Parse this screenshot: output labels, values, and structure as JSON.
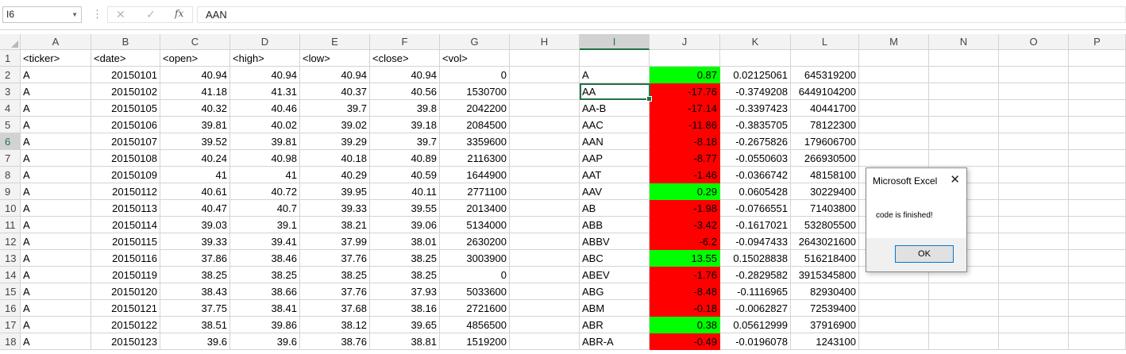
{
  "formula_bar": {
    "name_box": "I6",
    "cancel_glyph": "✕",
    "enter_glyph": "✓",
    "fx_label": "fx",
    "formula": "AAN"
  },
  "columns": [
    "A",
    "B",
    "C",
    "D",
    "E",
    "F",
    "G",
    "H",
    "I",
    "J",
    "K",
    "L",
    "M",
    "N",
    "O",
    "P"
  ],
  "selected_column": "I",
  "selected_row": 6,
  "rows": [
    {
      "n": "1",
      "A": "<ticker>",
      "B": "<date>",
      "C": "<open>",
      "D": "<high>",
      "E": "<low>",
      "F": "<close>",
      "G": "<vol>",
      "I": "",
      "J": "",
      "K": "",
      "L": "",
      "jcolor": ""
    },
    {
      "n": "2",
      "A": "A",
      "B": "20150101",
      "C": "40.94",
      "D": "40.94",
      "E": "40.94",
      "F": "40.94",
      "G": "0",
      "I": "A",
      "J": "0.87",
      "K": "0.02125061",
      "L": "645319200",
      "jcolor": "green"
    },
    {
      "n": "3",
      "A": "A",
      "B": "20150102",
      "C": "41.18",
      "D": "41.31",
      "E": "40.37",
      "F": "40.56",
      "G": "1530700",
      "I": "AA",
      "J": "-17.76",
      "K": "-0.3749208",
      "L": "6449104200",
      "jcolor": "red"
    },
    {
      "n": "4",
      "A": "A",
      "B": "20150105",
      "C": "40.32",
      "D": "40.46",
      "E": "39.7",
      "F": "39.8",
      "G": "2042200",
      "I": "AA-B",
      "J": "-17.14",
      "K": "-0.3397423",
      "L": "40441700",
      "jcolor": "red"
    },
    {
      "n": "5",
      "A": "A",
      "B": "20150106",
      "C": "39.81",
      "D": "40.02",
      "E": "39.02",
      "F": "39.18",
      "G": "2084500",
      "I": "AAC",
      "J": "-11.86",
      "K": "-0.3835705",
      "L": "78122300",
      "jcolor": "red"
    },
    {
      "n": "6",
      "A": "A",
      "B": "20150107",
      "C": "39.52",
      "D": "39.81",
      "E": "39.29",
      "F": "39.7",
      "G": "3359600",
      "I": "AAN",
      "J": "-8.18",
      "K": "-0.2675826",
      "L": "179606700",
      "jcolor": "red"
    },
    {
      "n": "7",
      "A": "A",
      "B": "20150108",
      "C": "40.24",
      "D": "40.98",
      "E": "40.18",
      "F": "40.89",
      "G": "2116300",
      "I": "AAP",
      "J": "-8.77",
      "K": "-0.0550603",
      "L": "266930500",
      "jcolor": "red"
    },
    {
      "n": "8",
      "A": "A",
      "B": "20150109",
      "C": "41",
      "D": "41",
      "E": "40.29",
      "F": "40.59",
      "G": "1644900",
      "I": "AAT",
      "J": "-1.46",
      "K": "-0.0366742",
      "L": "48158100",
      "jcolor": "red"
    },
    {
      "n": "9",
      "A": "A",
      "B": "20150112",
      "C": "40.61",
      "D": "40.72",
      "E": "39.95",
      "F": "40.11",
      "G": "2771100",
      "I": "AAV",
      "J": "0.29",
      "K": "0.0605428",
      "L": "30229400",
      "jcolor": "green"
    },
    {
      "n": "10",
      "A": "A",
      "B": "20150113",
      "C": "40.47",
      "D": "40.7",
      "E": "39.33",
      "F": "39.55",
      "G": "2013400",
      "I": "AB",
      "J": "-1.98",
      "K": "-0.0766551",
      "L": "71403800",
      "jcolor": "red"
    },
    {
      "n": "11",
      "A": "A",
      "B": "20150114",
      "C": "39.03",
      "D": "39.1",
      "E": "38.21",
      "F": "39.06",
      "G": "5134000",
      "I": "ABB",
      "J": "-3.42",
      "K": "-0.1617021",
      "L": "532805500",
      "jcolor": "red"
    },
    {
      "n": "12",
      "A": "A",
      "B": "20150115",
      "C": "39.33",
      "D": "39.41",
      "E": "37.99",
      "F": "38.01",
      "G": "2630200",
      "I": "ABBV",
      "J": "-6.2",
      "K": "-0.0947433",
      "L": "2643021600",
      "jcolor": "red"
    },
    {
      "n": "13",
      "A": "A",
      "B": "20150116",
      "C": "37.86",
      "D": "38.46",
      "E": "37.76",
      "F": "38.25",
      "G": "3003900",
      "I": "ABC",
      "J": "13.55",
      "K": "0.15028838",
      "L": "516218400",
      "jcolor": "green"
    },
    {
      "n": "14",
      "A": "A",
      "B": "20150119",
      "C": "38.25",
      "D": "38.25",
      "E": "38.25",
      "F": "38.25",
      "G": "0",
      "I": "ABEV",
      "J": "-1.76",
      "K": "-0.2829582",
      "L": "3915345800",
      "jcolor": "red"
    },
    {
      "n": "15",
      "A": "A",
      "B": "20150120",
      "C": "38.43",
      "D": "38.66",
      "E": "37.76",
      "F": "37.93",
      "G": "5033600",
      "I": "ABG",
      "J": "-8.48",
      "K": "-0.1116965",
      "L": "82930400",
      "jcolor": "red"
    },
    {
      "n": "16",
      "A": "A",
      "B": "20150121",
      "C": "37.75",
      "D": "38.41",
      "E": "37.68",
      "F": "38.16",
      "G": "2721600",
      "I": "ABM",
      "J": "-0.18",
      "K": "-0.0062827",
      "L": "72539400",
      "jcolor": "red"
    },
    {
      "n": "17",
      "A": "A",
      "B": "20150122",
      "C": "38.51",
      "D": "39.86",
      "E": "38.12",
      "F": "39.65",
      "G": "4856500",
      "I": "ABR",
      "J": "0.38",
      "K": "0.05612999",
      "L": "37916900",
      "jcolor": "green"
    },
    {
      "n": "18",
      "A": "A",
      "B": "20150123",
      "C": "39.6",
      "D": "39.6",
      "E": "38.76",
      "F": "38.81",
      "G": "1519200",
      "I": "ABR-A",
      "J": "-0.49",
      "K": "-0.0196078",
      "L": "1243100",
      "jcolor": "red"
    }
  ],
  "dialog": {
    "title": "Microsoft Excel",
    "close_glyph": "✕",
    "message": "code is finished!",
    "ok_label": "OK"
  },
  "colors": {
    "positive": "#00ff00",
    "negative": "#ff0000",
    "accent": "#217346"
  }
}
